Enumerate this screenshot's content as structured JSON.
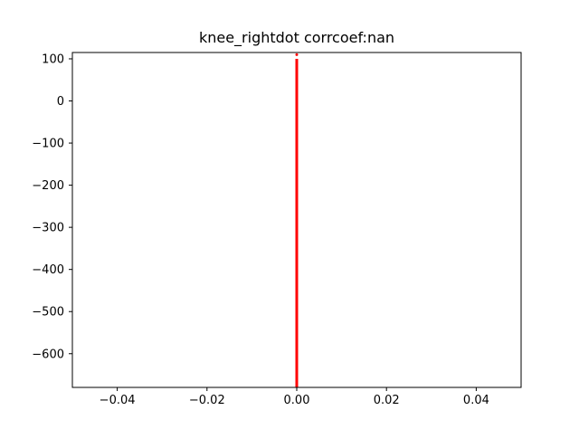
{
  "chart_data": {
    "type": "line",
    "title": "knee_rightdot corrcoef:nan",
    "xlabel": "",
    "ylabel": "",
    "xlim": [
      -0.05,
      0.05
    ],
    "ylim": [
      -680,
      115
    ],
    "x_ticks": [
      -0.04,
      -0.02,
      0.0,
      0.02,
      0.04
    ],
    "x_tick_labels": [
      "−0.04",
      "−0.02",
      "0.00",
      "0.02",
      "0.04"
    ],
    "y_ticks": [
      100,
      0,
      -100,
      -200,
      -300,
      -400,
      -500,
      -600
    ],
    "y_tick_labels": [
      "100",
      "0",
      "−100",
      "−200",
      "−300",
      "−400",
      "−500",
      "−600"
    ],
    "grid": false,
    "series": [
      {
        "color": "#ff0000",
        "x": [
          0.0,
          0.0
        ],
        "y": [
          -680,
          100
        ]
      }
    ],
    "series_points": [
      {
        "color": "#ff0000",
        "x": [
          0.0
        ],
        "y": [
          110
        ]
      }
    ]
  }
}
